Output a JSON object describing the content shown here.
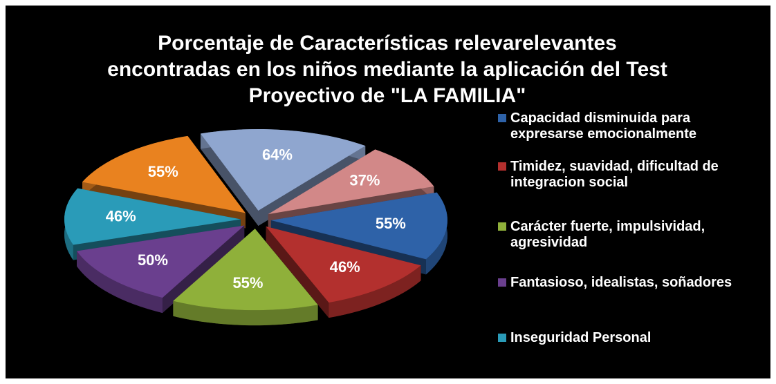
{
  "chart_data": {
    "type": "pie",
    "title": "Porcentaje de Características relevarelevantes encontradas en los niños mediante la aplicación del Test Proyectivo de \"LA FAMILIA\"",
    "categories": [
      "Capacidad disminuida para expresarse emocionalmente",
      "Timidez, suavidad, dificultad de integracion social",
      "Carácter fuerte, impulsividad, agresividad",
      "Fantasioso, idealistas, soñadores",
      "Inseguridad Personal",
      null,
      null,
      null
    ],
    "values": [
      55,
      46,
      55,
      50,
      46,
      55,
      64,
      37
    ],
    "value_labels": [
      "55%",
      "46%",
      "55%",
      "50%",
      "46%",
      "55%",
      "64%",
      "37%"
    ],
    "colors": [
      "#2e62a8",
      "#b3302e",
      "#8fb03a",
      "#6a3f8e",
      "#2a9bb8",
      "#e9821f",
      "#8fa6cf",
      "#d28888"
    ]
  }
}
